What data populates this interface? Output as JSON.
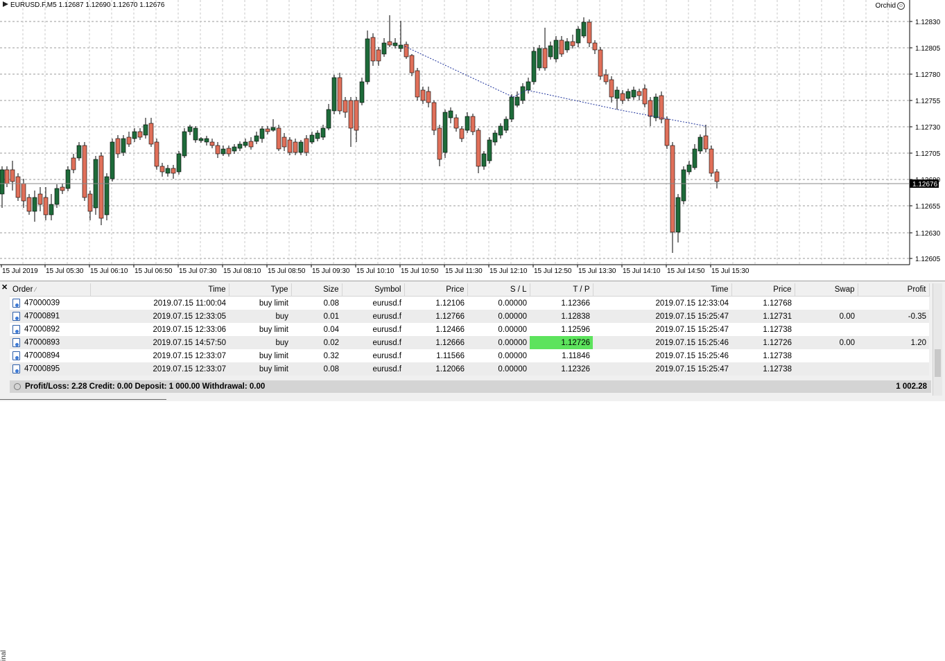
{
  "chart": {
    "header": "EURUSD.F,M5  1.12687 1.12690 1.12670 1.12676",
    "brand": "Orchid",
    "current_price": "1.12676",
    "price_labels": [
      "1.12830",
      "1.12805",
      "1.12780",
      "1.12755",
      "1.12730",
      "1.12705",
      "1.12680",
      "1.12655",
      "1.12630",
      "1.12605"
    ],
    "time_labels": [
      "15 Jul 2019",
      "15 Jul 05:30",
      "15 Jul 06:10",
      "15 Jul 06:50",
      "15 Jul 07:30",
      "15 Jul 08:10",
      "15 Jul 08:50",
      "15 Jul 09:30",
      "15 Jul 10:10",
      "15 Jul 10:50",
      "15 Jul 11:30",
      "15 Jul 12:10",
      "15 Jul 12:50",
      "15 Jul 13:30",
      "15 Jul 14:10",
      "15 Jul 14:50",
      "15 Jul 15:30"
    ],
    "colors": {
      "bull": "#1e6b3a",
      "bear": "#e0705a",
      "grid": "#9a9a9a",
      "trend": "#1a2f9a",
      "price_box": "#000000"
    }
  },
  "terminal": {
    "columns": {
      "order": "Order",
      "time": "Time",
      "type": "Type",
      "size": "Size",
      "symbol": "Symbol",
      "price": "Price",
      "sl": "S / L",
      "tp": "T / P",
      "close_time": "Time",
      "close_price": "Price",
      "swap": "Swap",
      "profit": "Profit"
    },
    "rows": [
      {
        "order": "47000039",
        "time": "2019.07.15 11:00:04",
        "type": "buy limit",
        "size": "0.08",
        "symbol": "eurusd.f",
        "price": "1.12106",
        "sl": "0.00000",
        "tp": "1.12366",
        "close_time": "2019.07.15 12:33:04",
        "close_price": "1.12768",
        "swap": "",
        "profit": ""
      },
      {
        "order": "47000891",
        "time": "2019.07.15 12:33:05",
        "type": "buy",
        "size": "0.01",
        "symbol": "eurusd.f",
        "price": "1.12766",
        "sl": "0.00000",
        "tp": "1.12838",
        "close_time": "2019.07.15 15:25:47",
        "close_price": "1.12731",
        "swap": "0.00",
        "profit": "-0.35"
      },
      {
        "order": "47000892",
        "time": "2019.07.15 12:33:06",
        "type": "buy limit",
        "size": "0.04",
        "symbol": "eurusd.f",
        "price": "1.12466",
        "sl": "0.00000",
        "tp": "1.12596",
        "close_time": "2019.07.15 15:25:47",
        "close_price": "1.12738",
        "swap": "",
        "profit": ""
      },
      {
        "order": "47000893",
        "time": "2019.07.15 14:57:50",
        "type": "buy",
        "size": "0.02",
        "symbol": "eurusd.f",
        "price": "1.12666",
        "sl": "0.00000",
        "tp": "1.12726",
        "close_time": "2019.07.15 15:25:46",
        "close_price": "1.12726",
        "swap": "0.00",
        "profit": "1.20"
      },
      {
        "order": "47000894",
        "time": "2019.07.15 12:33:07",
        "type": "buy limit",
        "size": "0.32",
        "symbol": "eurusd.f",
        "price": "1.11566",
        "sl": "0.00000",
        "tp": "1.11846",
        "close_time": "2019.07.15 15:25:46",
        "close_price": "1.12738",
        "swap": "",
        "profit": ""
      },
      {
        "order": "47000895",
        "time": "2019.07.15 12:33:07",
        "type": "buy limit",
        "size": "0.08",
        "symbol": "eurusd.f",
        "price": "1.12066",
        "sl": "0.00000",
        "tp": "1.12326",
        "close_time": "2019.07.15 15:25:47",
        "close_price": "1.12738",
        "swap": "",
        "profit": ""
      }
    ],
    "summary": "Profit/Loss: 2.28  Credit: 0.00  Deposit: 1 000.00  Withdrawal: 0.00",
    "balance": "1 002.28",
    "side_tab": "inal",
    "highlight_color": "#5de35d"
  }
}
